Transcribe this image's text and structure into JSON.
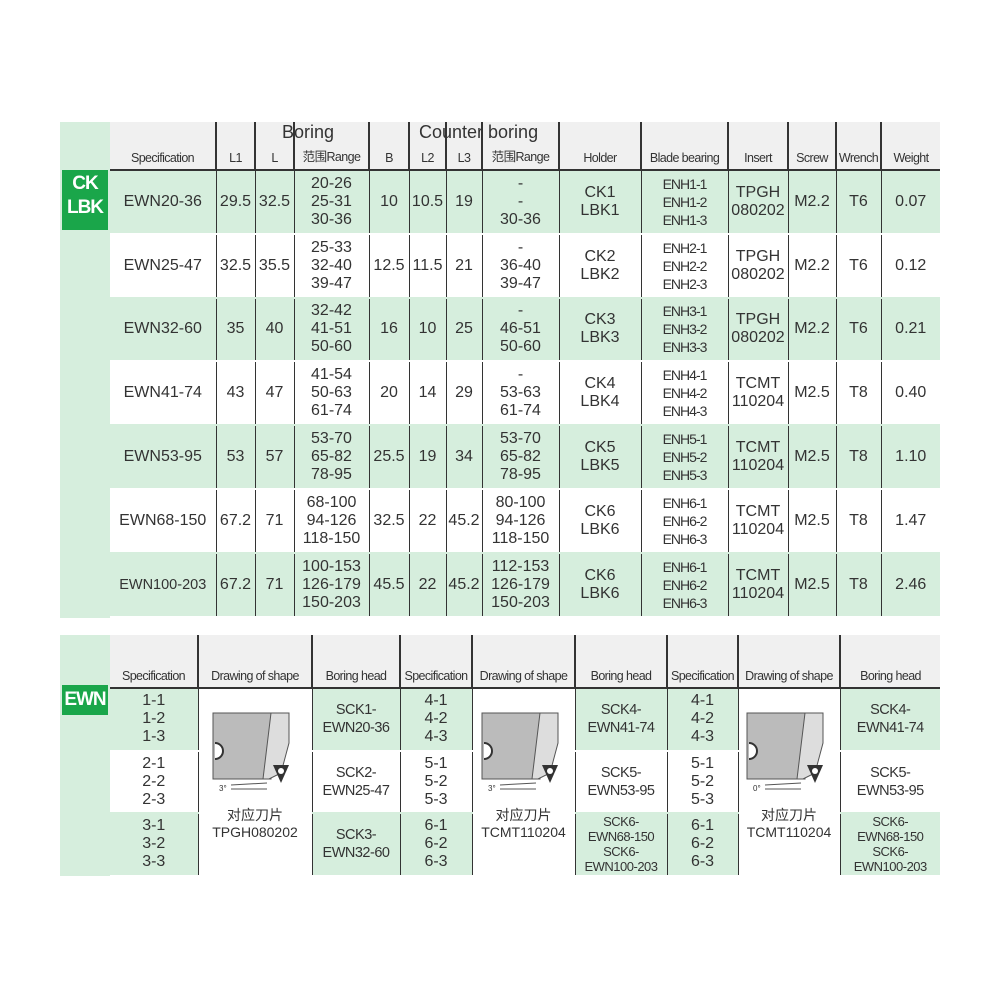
{
  "table1": {
    "badge": [
      "CK",
      "LBK"
    ],
    "group_boring": "Boring",
    "group_counter": "Counter boring",
    "headers": [
      "Specification",
      "L1",
      "L",
      "范围Range",
      "B",
      "L2",
      "L3",
      "范围Range",
      "Holder",
      "Blade bearing",
      "Insert",
      "Screw",
      "Wrench",
      "Weight"
    ],
    "rows": [
      {
        "spec": "EWN20-36",
        "l1": "29.5",
        "l": "32.5",
        "range": [
          "20-26",
          "25-31",
          "30-36"
        ],
        "b": "10",
        "l2": "10.5",
        "l3": "19",
        "crange": [
          "-",
          "-",
          "30-36"
        ],
        "holder": [
          "CK1",
          "LBK1"
        ],
        "blade": [
          "ENH1-1",
          "ENH1-2",
          "ENH1-3"
        ],
        "insert": [
          "TPGH",
          "080202"
        ],
        "screw": "M2.2",
        "wrench": "T6",
        "weight": "0.07"
      },
      {
        "spec": "EWN25-47",
        "l1": "32.5",
        "l": "35.5",
        "range": [
          "25-33",
          "32-40",
          "39-47"
        ],
        "b": "12.5",
        "l2": "11.5",
        "l3": "21",
        "crange": [
          "-",
          "36-40",
          "39-47"
        ],
        "holder": [
          "CK2",
          "LBK2"
        ],
        "blade": [
          "ENH2-1",
          "ENH2-2",
          "ENH2-3"
        ],
        "insert": [
          "TPGH",
          "080202"
        ],
        "screw": "M2.2",
        "wrench": "T6",
        "weight": "0.12"
      },
      {
        "spec": "EWN32-60",
        "l1": "35",
        "l": "40",
        "range": [
          "32-42",
          "41-51",
          "50-60"
        ],
        "b": "16",
        "l2": "10",
        "l3": "25",
        "crange": [
          "-",
          "46-51",
          "50-60"
        ],
        "holder": [
          "CK3",
          "LBK3"
        ],
        "blade": [
          "ENH3-1",
          "ENH3-2",
          "ENH3-3"
        ],
        "insert": [
          "TPGH",
          "080202"
        ],
        "screw": "M2.2",
        "wrench": "T6",
        "weight": "0.21"
      },
      {
        "spec": "EWN41-74",
        "l1": "43",
        "l": "47",
        "range": [
          "41-54",
          "50-63",
          "61-74"
        ],
        "b": "20",
        "l2": "14",
        "l3": "29",
        "crange": [
          "-",
          "53-63",
          "61-74"
        ],
        "holder": [
          "CK4",
          "LBK4"
        ],
        "blade": [
          "ENH4-1",
          "ENH4-2",
          "ENH4-3"
        ],
        "insert": [
          "TCMT",
          "110204"
        ],
        "screw": "M2.5",
        "wrench": "T8",
        "weight": "0.40"
      },
      {
        "spec": "EWN53-95",
        "l1": "53",
        "l": "57",
        "range": [
          "53-70",
          "65-82",
          "78-95"
        ],
        "b": "25.5",
        "l2": "19",
        "l3": "34",
        "crange": [
          "53-70",
          "65-82",
          "78-95"
        ],
        "holder": [
          "CK5",
          "LBK5"
        ],
        "blade": [
          "ENH5-1",
          "ENH5-2",
          "ENH5-3"
        ],
        "insert": [
          "TCMT",
          "110204"
        ],
        "screw": "M2.5",
        "wrench": "T8",
        "weight": "1.10"
      },
      {
        "spec": "EWN68-150",
        "l1": "67.2",
        "l": "71",
        "range": [
          "68-100",
          "94-126",
          "118-150"
        ],
        "b": "32.5",
        "l2": "22",
        "l3": "45.2",
        "crange": [
          "80-100",
          "94-126",
          "118-150"
        ],
        "holder": [
          "CK6",
          "LBK6"
        ],
        "blade": [
          "ENH6-1",
          "ENH6-2",
          "ENH6-3"
        ],
        "insert": [
          "TCMT",
          "110204"
        ],
        "screw": "M2.5",
        "wrench": "T8",
        "weight": "1.47"
      },
      {
        "spec": "EWN100-203",
        "l1": "67.2",
        "l": "71",
        "range": [
          "100-153",
          "126-179",
          "150-203"
        ],
        "b": "45.5",
        "l2": "22",
        "l3": "45.2",
        "crange": [
          "112-153",
          "126-179",
          "150-203"
        ],
        "holder": [
          "CK6",
          "LBK6"
        ],
        "blade": [
          "ENH6-1",
          "ENH6-2",
          "ENH6-3"
        ],
        "insert": [
          "TCMT",
          "110204"
        ],
        "screw": "M2.5",
        "wrench": "T8",
        "weight": "2.46"
      }
    ]
  },
  "table2": {
    "badge": "EWN",
    "headers": [
      "Specification",
      "Drawing of shape",
      "Boring head",
      "Specification",
      "Drawing of shape",
      "Boring head",
      "Specification",
      "Drawing of shape",
      "Boring head"
    ],
    "groups": [
      {
        "specs": [
          [
            "1-1",
            "1-2",
            "1-3"
          ],
          [
            "2-1",
            "2-2",
            "2-3"
          ],
          [
            "3-1",
            "3-2",
            "3-3"
          ]
        ],
        "angle": "3°",
        "insert_label": "对应刀片",
        "insert": "TPGH080202",
        "heads": [
          [
            "SCK1-",
            "EWN20-36"
          ],
          [
            "SCK2-",
            "EWN25-47"
          ],
          [
            "SCK3-",
            "EWN32-60"
          ]
        ]
      },
      {
        "specs": [
          [
            "4-1",
            "4-2",
            "4-3"
          ],
          [
            "5-1",
            "5-2",
            "5-3"
          ],
          [
            "6-1",
            "6-2",
            "6-3"
          ]
        ],
        "angle": "3°",
        "insert_label": "对应刀片",
        "insert": "TCMT110204",
        "heads": [
          [
            "SCK4-",
            "EWN41-74"
          ],
          [
            "SCK5-",
            "EWN53-95"
          ],
          [
            "SCK6-",
            "EWN68-150",
            "SCK6-",
            "EWN100-203"
          ]
        ]
      },
      {
        "specs": [
          [
            "4-1",
            "4-2",
            "4-3"
          ],
          [
            "5-1",
            "5-2",
            "5-3"
          ],
          [
            "6-1",
            "6-2",
            "6-3"
          ]
        ],
        "angle": "0°",
        "insert_label": "对应刀片",
        "insert": "TCMT110204",
        "heads": [
          [
            "SCK4-",
            "EWN41-74"
          ],
          [
            "SCK5-",
            "EWN53-95"
          ],
          [
            "SCK6-",
            "EWN68-150",
            "SCK6-",
            "EWN100-203"
          ]
        ]
      }
    ]
  },
  "colors": {
    "green_row": "#d6eedd",
    "badge": "#1aa64a",
    "header": "#f0f0f0"
  }
}
